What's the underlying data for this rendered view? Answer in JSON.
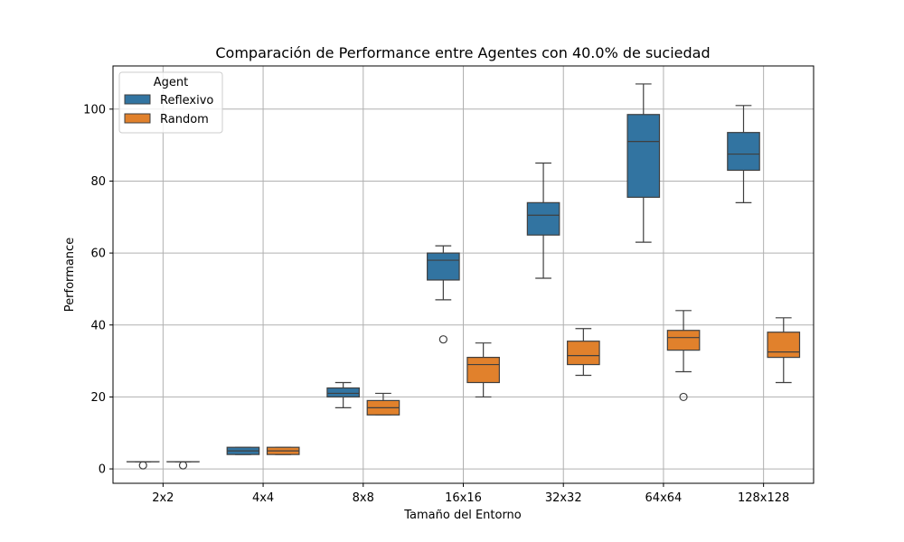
{
  "chart_data": {
    "type": "box",
    "title": "Comparación de Performance entre Agentes con 40.0% de suciedad",
    "xlabel": "Tamaño del Entorno",
    "ylabel": "Performance",
    "categories": [
      "2x2",
      "4x4",
      "8x8",
      "16x16",
      "32x32",
      "64x64",
      "128x128"
    ],
    "ylim": [
      -4,
      112
    ],
    "yticks": [
      0,
      20,
      40,
      60,
      80,
      100
    ],
    "grid": true,
    "legend": {
      "title": "Agent",
      "position": "top-left"
    },
    "series": [
      {
        "name": "Reflexivo",
        "color": "#3274a1",
        "boxes": [
          {
            "min": 2,
            "q1": 2,
            "median": 2,
            "q3": 2,
            "max": 2,
            "outliers": [
              1
            ]
          },
          {
            "min": 4,
            "q1": 4,
            "median": 5,
            "q3": 6,
            "max": 6,
            "outliers": []
          },
          {
            "min": 17,
            "q1": 20,
            "median": 21,
            "q3": 22.5,
            "max": 24,
            "outliers": []
          },
          {
            "min": 47,
            "q1": 52.5,
            "median": 58,
            "q3": 60,
            "max": 62,
            "outliers": [
              36
            ]
          },
          {
            "min": 53,
            "q1": 65,
            "median": 70.5,
            "q3": 74,
            "max": 85,
            "outliers": []
          },
          {
            "min": 63,
            "q1": 75.5,
            "median": 91,
            "q3": 98.5,
            "max": 107,
            "outliers": []
          },
          {
            "min": 74,
            "q1": 83,
            "median": 87.5,
            "q3": 93.5,
            "max": 101,
            "outliers": []
          }
        ]
      },
      {
        "name": "Random",
        "color": "#e1812c",
        "boxes": [
          {
            "min": 2,
            "q1": 2,
            "median": 2,
            "q3": 2,
            "max": 2,
            "outliers": [
              1
            ]
          },
          {
            "min": 4,
            "q1": 4,
            "median": 5,
            "q3": 6,
            "max": 6,
            "outliers": []
          },
          {
            "min": 15,
            "q1": 15,
            "median": 17,
            "q3": 19,
            "max": 21,
            "outliers": []
          },
          {
            "min": 20,
            "q1": 24,
            "median": 29,
            "q3": 31,
            "max": 35,
            "outliers": []
          },
          {
            "min": 26,
            "q1": 29,
            "median": 31.5,
            "q3": 35.5,
            "max": 39,
            "outliers": []
          },
          {
            "min": 27,
            "q1": 33,
            "median": 36.5,
            "q3": 38.5,
            "max": 44,
            "outliers": [
              20
            ]
          },
          {
            "min": 24,
            "q1": 31,
            "median": 32.5,
            "q3": 38,
            "max": 42,
            "outliers": []
          }
        ]
      }
    ]
  }
}
